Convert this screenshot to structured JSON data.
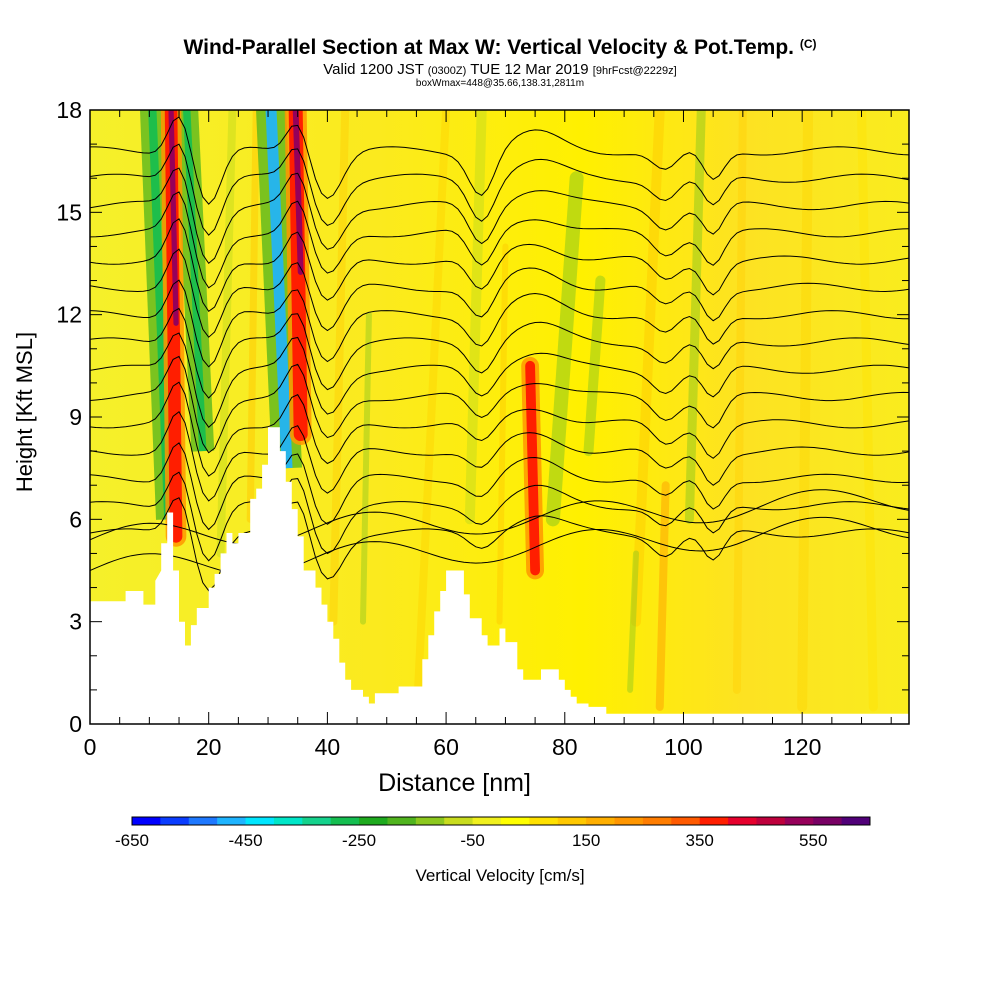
{
  "header": {
    "title_main": "Wind-Parallel Section at Max W: Vertical Velocity & Pot.Temp.",
    "title_mark": "(C)",
    "valid_a": "Valid 1200 JST",
    "valid_b": "(0300Z)",
    "valid_c": "TUE 12 Mar 2019",
    "valid_d": "[9hrFcst@2229z]",
    "box_line": "boxWmax=448@35.66,138.31,2811m"
  },
  "chart_data": {
    "type": "heatmap",
    "xlabel": "Distance [nm]",
    "ylabel": "Height [Kft MSL]",
    "xlim": [
      0,
      138
    ],
    "ylim": [
      0,
      18
    ],
    "xticks": [
      0,
      20,
      40,
      60,
      80,
      100,
      120
    ],
    "yticks": [
      0,
      3,
      6,
      9,
      12,
      15,
      18
    ],
    "colorbar": {
      "label": "Vertical Velocity [cm/s]",
      "min": -650,
      "max": 650,
      "step": 50,
      "tick_labels": [
        "-650",
        "-450",
        "-250",
        "-50",
        "150",
        "350",
        "550"
      ],
      "colors": [
        "#0000ff",
        "#0a3cff",
        "#1e78ff",
        "#1eb4ff",
        "#00e6ff",
        "#00e6c8",
        "#14d28c",
        "#14be50",
        "#1eaa1e",
        "#50b41e",
        "#8cc81e",
        "#c8dc1e",
        "#f0f01e",
        "#ffff00",
        "#ffe100",
        "#ffc800",
        "#ffaf00",
        "#ff9600",
        "#ff7d00",
        "#ff5a00",
        "#ff1e00",
        "#e6002d",
        "#be003c",
        "#96005a",
        "#780064",
        "#500078"
      ]
    },
    "terrain_kft": [
      [
        0,
        3.6
      ],
      [
        6,
        3.6
      ],
      [
        6,
        3.9
      ],
      [
        9,
        3.9
      ],
      [
        9,
        3.5
      ],
      [
        11,
        3.5
      ],
      [
        11,
        4.2
      ],
      [
        12,
        4.5
      ],
      [
        12,
        5.3
      ],
      [
        13,
        5.3
      ],
      [
        13,
        6.2
      ],
      [
        14,
        6.2
      ],
      [
        14,
        4.5
      ],
      [
        15,
        4.5
      ],
      [
        15,
        3.0
      ],
      [
        16,
        3.0
      ],
      [
        16,
        2.3
      ],
      [
        17,
        2.3
      ],
      [
        17,
        2.9
      ],
      [
        18,
        2.9
      ],
      [
        18,
        3.4
      ],
      [
        20,
        3.4
      ],
      [
        20,
        4.0
      ],
      [
        21,
        4.0
      ],
      [
        21,
        4.4
      ],
      [
        22,
        4.4
      ],
      [
        22,
        5.0
      ],
      [
        23,
        5.0
      ],
      [
        23,
        5.6
      ],
      [
        24,
        5.6
      ],
      [
        24,
        5.3
      ],
      [
        25,
        5.3
      ],
      [
        25,
        5.6
      ],
      [
        27,
        5.6
      ],
      [
        27,
        6.6
      ],
      [
        28,
        6.6
      ],
      [
        28,
        6.9
      ],
      [
        29,
        6.9
      ],
      [
        29,
        7.6
      ],
      [
        30,
        7.6
      ],
      [
        30,
        8.7
      ],
      [
        32,
        8.7
      ],
      [
        32,
        8.0
      ],
      [
        33,
        8.0
      ],
      [
        33,
        7.1
      ],
      [
        34,
        7.1
      ],
      [
        34,
        6.3
      ],
      [
        35,
        6.3
      ],
      [
        35,
        5.5
      ],
      [
        36,
        5.5
      ],
      [
        36,
        4.5
      ],
      [
        38,
        4.5
      ],
      [
        38,
        4.0
      ],
      [
        39,
        4.0
      ],
      [
        39,
        3.5
      ],
      [
        40,
        3.5
      ],
      [
        40,
        3.0
      ],
      [
        41,
        3.0
      ],
      [
        41,
        2.5
      ],
      [
        42,
        2.5
      ],
      [
        42,
        1.8
      ],
      [
        43,
        1.8
      ],
      [
        43,
        1.3
      ],
      [
        44,
        1.3
      ],
      [
        44,
        1.0
      ],
      [
        46,
        1.0
      ],
      [
        46,
        0.8
      ],
      [
        47,
        0.8
      ],
      [
        47,
        0.6
      ],
      [
        48,
        0.6
      ],
      [
        48,
        0.9
      ],
      [
        52,
        0.9
      ],
      [
        52,
        1.1
      ],
      [
        56,
        1.1
      ],
      [
        56,
        1.9
      ],
      [
        57,
        1.9
      ],
      [
        57,
        2.6
      ],
      [
        58,
        2.6
      ],
      [
        58,
        3.3
      ],
      [
        59,
        3.3
      ],
      [
        59,
        3.9
      ],
      [
        60,
        3.9
      ],
      [
        60,
        4.5
      ],
      [
        63,
        4.5
      ],
      [
        63,
        3.8
      ],
      [
        64,
        3.8
      ],
      [
        64,
        3.1
      ],
      [
        66,
        3.1
      ],
      [
        66,
        2.6
      ],
      [
        67,
        2.6
      ],
      [
        67,
        2.3
      ],
      [
        69,
        2.3
      ],
      [
        69,
        2.8
      ],
      [
        70,
        2.8
      ],
      [
        70,
        2.4
      ],
      [
        72,
        2.4
      ],
      [
        72,
        1.6
      ],
      [
        73,
        1.6
      ],
      [
        73,
        1.3
      ],
      [
        76,
        1.3
      ],
      [
        76,
        1.6
      ],
      [
        79,
        1.6
      ],
      [
        79,
        1.3
      ],
      [
        80,
        1.3
      ],
      [
        80,
        1.0
      ],
      [
        81,
        1.0
      ],
      [
        81,
        0.8
      ],
      [
        82,
        0.8
      ],
      [
        82,
        0.6
      ],
      [
        84,
        0.6
      ],
      [
        84,
        0.5
      ],
      [
        87,
        0.5
      ],
      [
        87,
        0.3
      ],
      [
        138,
        0.3
      ]
    ],
    "updraft_cores": [
      {
        "x": 14.5,
        "top_kft": 18,
        "bottom_kft": 5.5,
        "w": 450
      },
      {
        "x": 35.5,
        "top_kft": 18,
        "bottom_kft": 8.5,
        "w": 500
      },
      {
        "x": 75,
        "top_kft": 10.5,
        "bottom_kft": 4.5,
        "w": 350
      }
    ],
    "downdraft_cores": [
      {
        "x": 13.2,
        "top_kft": 18,
        "bottom_kft": 6,
        "w": -300
      },
      {
        "x": 19,
        "top_kft": 18,
        "bottom_kft": 8,
        "w": -250
      },
      {
        "x": 33.2,
        "top_kft": 18,
        "bottom_kft": 7.5,
        "w": -450
      }
    ]
  }
}
